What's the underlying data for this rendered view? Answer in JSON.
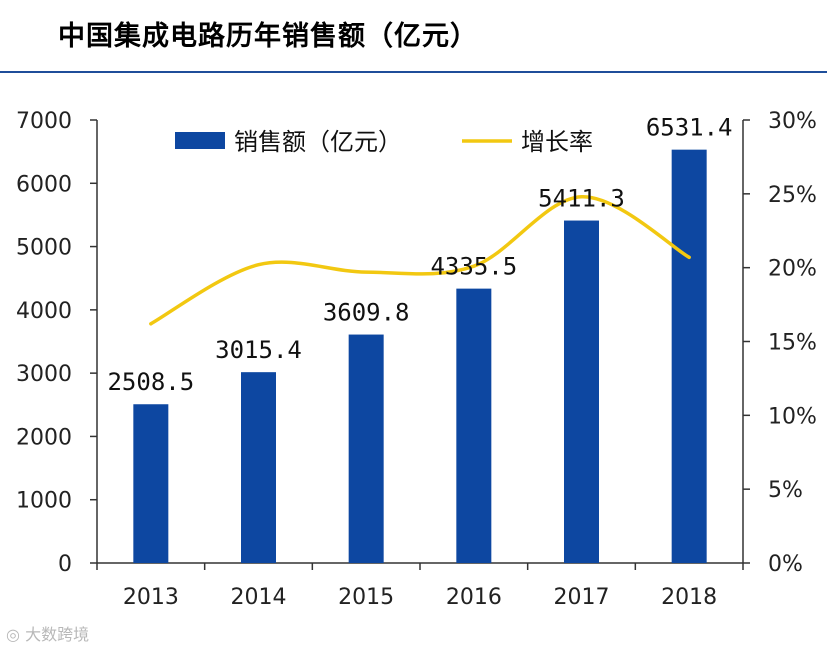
{
  "title": "中国集成电路历年销售额（亿元）",
  "watermark": "大数跨境",
  "colors": {
    "bar": "#0d47a1",
    "line": "#f2c811",
    "axis": "#333333",
    "rule": "#1f4e9a"
  },
  "chart_data": {
    "type": "bar",
    "title": "中国集成电路历年销售额（亿元）",
    "categories": [
      "2013",
      "2014",
      "2015",
      "2016",
      "2017",
      "2018"
    ],
    "series": [
      {
        "name": "销售额（亿元）",
        "type": "bar",
        "axis": "left",
        "values": [
          2508.5,
          3015.4,
          3609.8,
          4335.5,
          5411.3,
          6531.4
        ],
        "labels": [
          "2508.5",
          "3015.4",
          "3609.8",
          "4335.5",
          "5411.3",
          "6531.4"
        ]
      },
      {
        "name": "增长率",
        "type": "line",
        "axis": "right",
        "values": [
          16.2,
          20.2,
          19.7,
          20.1,
          24.8,
          20.7
        ]
      }
    ],
    "y_left": {
      "range": [
        0,
        7000
      ],
      "ticks": [
        "0",
        "1000",
        "2000",
        "3000",
        "4000",
        "5000",
        "6000",
        "7000"
      ]
    },
    "y_right": {
      "range": [
        0,
        30
      ],
      "ticks": [
        "0%",
        "5%",
        "10%",
        "15%",
        "20%",
        "25%",
        "30%"
      ]
    },
    "legend_position": "top-center",
    "grid": false
  }
}
